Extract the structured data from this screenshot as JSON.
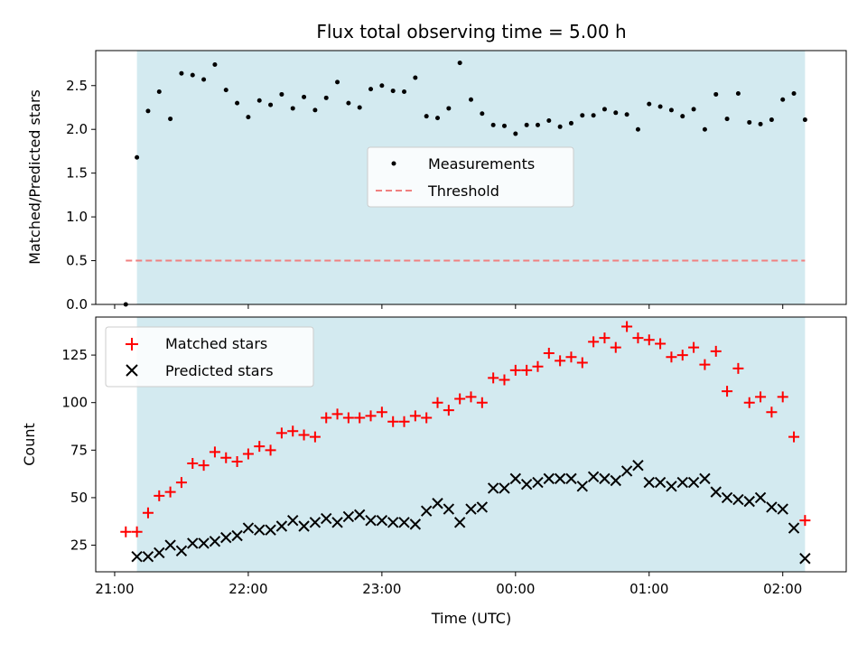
{
  "chart_data": {
    "title": "Flux total observing time = 5.00 h",
    "xlabel": "Time (UTC)",
    "x_tick_labels": [
      "21:00",
      "22:00",
      "23:00",
      "00:00",
      "01:00",
      "02:00"
    ],
    "colors": {
      "shade": "#d3eaf0",
      "measurements": "#000000",
      "threshold": "#f08080",
      "matched": "#ff0000",
      "predicted": "#000000"
    },
    "shaded_span": {
      "start": "21:10",
      "end": "02:10"
    },
    "top": {
      "type": "scatter",
      "ylabel": "Matched/Predicted stars",
      "ylim": [
        0,
        2.9
      ],
      "yticks": [
        0.0,
        0.5,
        1.0,
        1.5,
        2.0,
        2.5
      ],
      "ytick_labels": [
        "0.0",
        "0.5",
        "1.0",
        "1.5",
        "2.0",
        "2.5"
      ],
      "legend": {
        "placement": "center",
        "entries": [
          "Measurements",
          "Threshold"
        ]
      },
      "threshold": {
        "name": "Threshold",
        "value": 0.5,
        "from": "21:05",
        "to": "02:10"
      },
      "series": [
        {
          "name": "Measurements",
          "times": [
            "21:05",
            "21:10",
            "21:15",
            "21:20",
            "21:25",
            "21:30",
            "21:35",
            "21:40",
            "21:45",
            "21:50",
            "21:55",
            "22:00",
            "22:05",
            "22:10",
            "22:15",
            "22:20",
            "22:25",
            "22:30",
            "22:35",
            "22:40",
            "22:45",
            "22:50",
            "22:55",
            "23:00",
            "23:05",
            "23:10",
            "23:15",
            "23:20",
            "23:25",
            "23:30",
            "23:35",
            "23:40",
            "23:45",
            "23:50",
            "23:55",
            "00:00",
            "00:05",
            "00:10",
            "00:15",
            "00:20",
            "00:25",
            "00:30",
            "00:35",
            "00:40",
            "00:45",
            "00:50",
            "00:55",
            "01:00",
            "01:05",
            "01:10",
            "01:15",
            "01:20",
            "01:25",
            "01:30",
            "01:35",
            "01:40",
            "01:45",
            "01:50",
            "01:55",
            "02:00",
            "02:05",
            "02:10"
          ],
          "values": [
            0.0,
            1.68,
            2.21,
            2.43,
            2.12,
            2.64,
            2.62,
            2.57,
            2.74,
            2.45,
            2.3,
            2.14,
            2.33,
            2.28,
            2.4,
            2.24,
            2.37,
            2.22,
            2.36,
            2.54,
            2.3,
            2.25,
            2.46,
            2.5,
            2.44,
            2.43,
            2.59,
            2.15,
            2.13,
            2.24,
            2.76,
            2.34,
            2.18,
            2.05,
            2.04,
            1.95,
            2.05,
            2.05,
            2.1,
            2.03,
            2.07,
            2.16,
            2.16,
            2.23,
            2.19,
            2.17,
            2.0,
            2.29,
            2.26,
            2.22,
            2.15,
            2.23,
            2.0,
            2.4,
            2.12,
            2.41,
            2.08,
            2.06,
            2.11,
            2.34,
            2.41,
            2.11
          ]
        }
      ]
    },
    "bottom": {
      "type": "scatter",
      "ylabel": "Count",
      "ylim": [
        11,
        145
      ],
      "yticks": [
        25,
        50,
        75,
        100,
        125
      ],
      "ytick_labels": [
        "25",
        "50",
        "75",
        "100",
        "125"
      ],
      "legend": {
        "placement": "upper-left",
        "entries": [
          "Matched stars",
          "Predicted stars"
        ]
      },
      "series": [
        {
          "name": "Matched stars",
          "marker": "plus",
          "times": [
            "21:05",
            "21:10",
            "21:15",
            "21:20",
            "21:25",
            "21:30",
            "21:35",
            "21:40",
            "21:45",
            "21:50",
            "21:55",
            "22:00",
            "22:05",
            "22:10",
            "22:15",
            "22:20",
            "22:25",
            "22:30",
            "22:35",
            "22:40",
            "22:45",
            "22:50",
            "22:55",
            "23:00",
            "23:05",
            "23:10",
            "23:15",
            "23:20",
            "23:25",
            "23:30",
            "23:35",
            "23:40",
            "23:45",
            "23:50",
            "23:55",
            "00:00",
            "00:05",
            "00:10",
            "00:15",
            "00:20",
            "00:25",
            "00:30",
            "00:35",
            "00:40",
            "00:45",
            "00:50",
            "00:55",
            "01:00",
            "01:05",
            "01:10",
            "01:15",
            "01:20",
            "01:25",
            "01:30",
            "01:35",
            "01:40",
            "01:45",
            "01:50",
            "01:55",
            "02:00",
            "02:05",
            "02:10"
          ],
          "values": [
            32,
            32,
            42,
            51,
            53,
            58,
            68,
            67,
            74,
            71,
            69,
            73,
            77,
            75,
            84,
            85,
            83,
            82,
            92,
            94,
            92,
            92,
            93,
            95,
            90,
            90,
            93,
            92,
            100,
            96,
            102,
            103,
            100,
            113,
            112,
            117,
            117,
            119,
            126,
            122,
            124,
            121,
            132,
            134,
            129,
            140,
            134,
            133,
            131,
            124,
            125,
            129,
            120,
            127,
            106,
            118,
            100,
            103,
            95,
            103,
            82,
            38
          ]
        },
        {
          "name": "Predicted stars",
          "marker": "cross",
          "times": [
            "21:10",
            "21:15",
            "21:20",
            "21:25",
            "21:30",
            "21:35",
            "21:40",
            "21:45",
            "21:50",
            "21:55",
            "22:00",
            "22:05",
            "22:10",
            "22:15",
            "22:20",
            "22:25",
            "22:30",
            "22:35",
            "22:40",
            "22:45",
            "22:50",
            "22:55",
            "23:00",
            "23:05",
            "23:10",
            "23:15",
            "23:20",
            "23:25",
            "23:30",
            "23:35",
            "23:40",
            "23:45",
            "23:50",
            "23:55",
            "00:00",
            "00:05",
            "00:10",
            "00:15",
            "00:20",
            "00:25",
            "00:30",
            "00:35",
            "00:40",
            "00:45",
            "00:50",
            "00:55",
            "01:00",
            "01:05",
            "01:10",
            "01:15",
            "01:20",
            "01:25",
            "01:30",
            "01:35",
            "01:40",
            "01:45",
            "01:50",
            "01:55",
            "02:00",
            "02:05",
            "02:10"
          ],
          "values": [
            19,
            19,
            21,
            25,
            22,
            26,
            26,
            27,
            29,
            30,
            34,
            33,
            33,
            35,
            38,
            35,
            37,
            39,
            37,
            40,
            41,
            38,
            38,
            37,
            37,
            36,
            43,
            47,
            44,
            37,
            44,
            45,
            55,
            55,
            60,
            57,
            58,
            60,
            60,
            60,
            56,
            61,
            60,
            59,
            64,
            67,
            58,
            58,
            56,
            58,
            58,
            60,
            53,
            50,
            49,
            48,
            50,
            45,
            44,
            34,
            18
          ]
        }
      ]
    }
  }
}
